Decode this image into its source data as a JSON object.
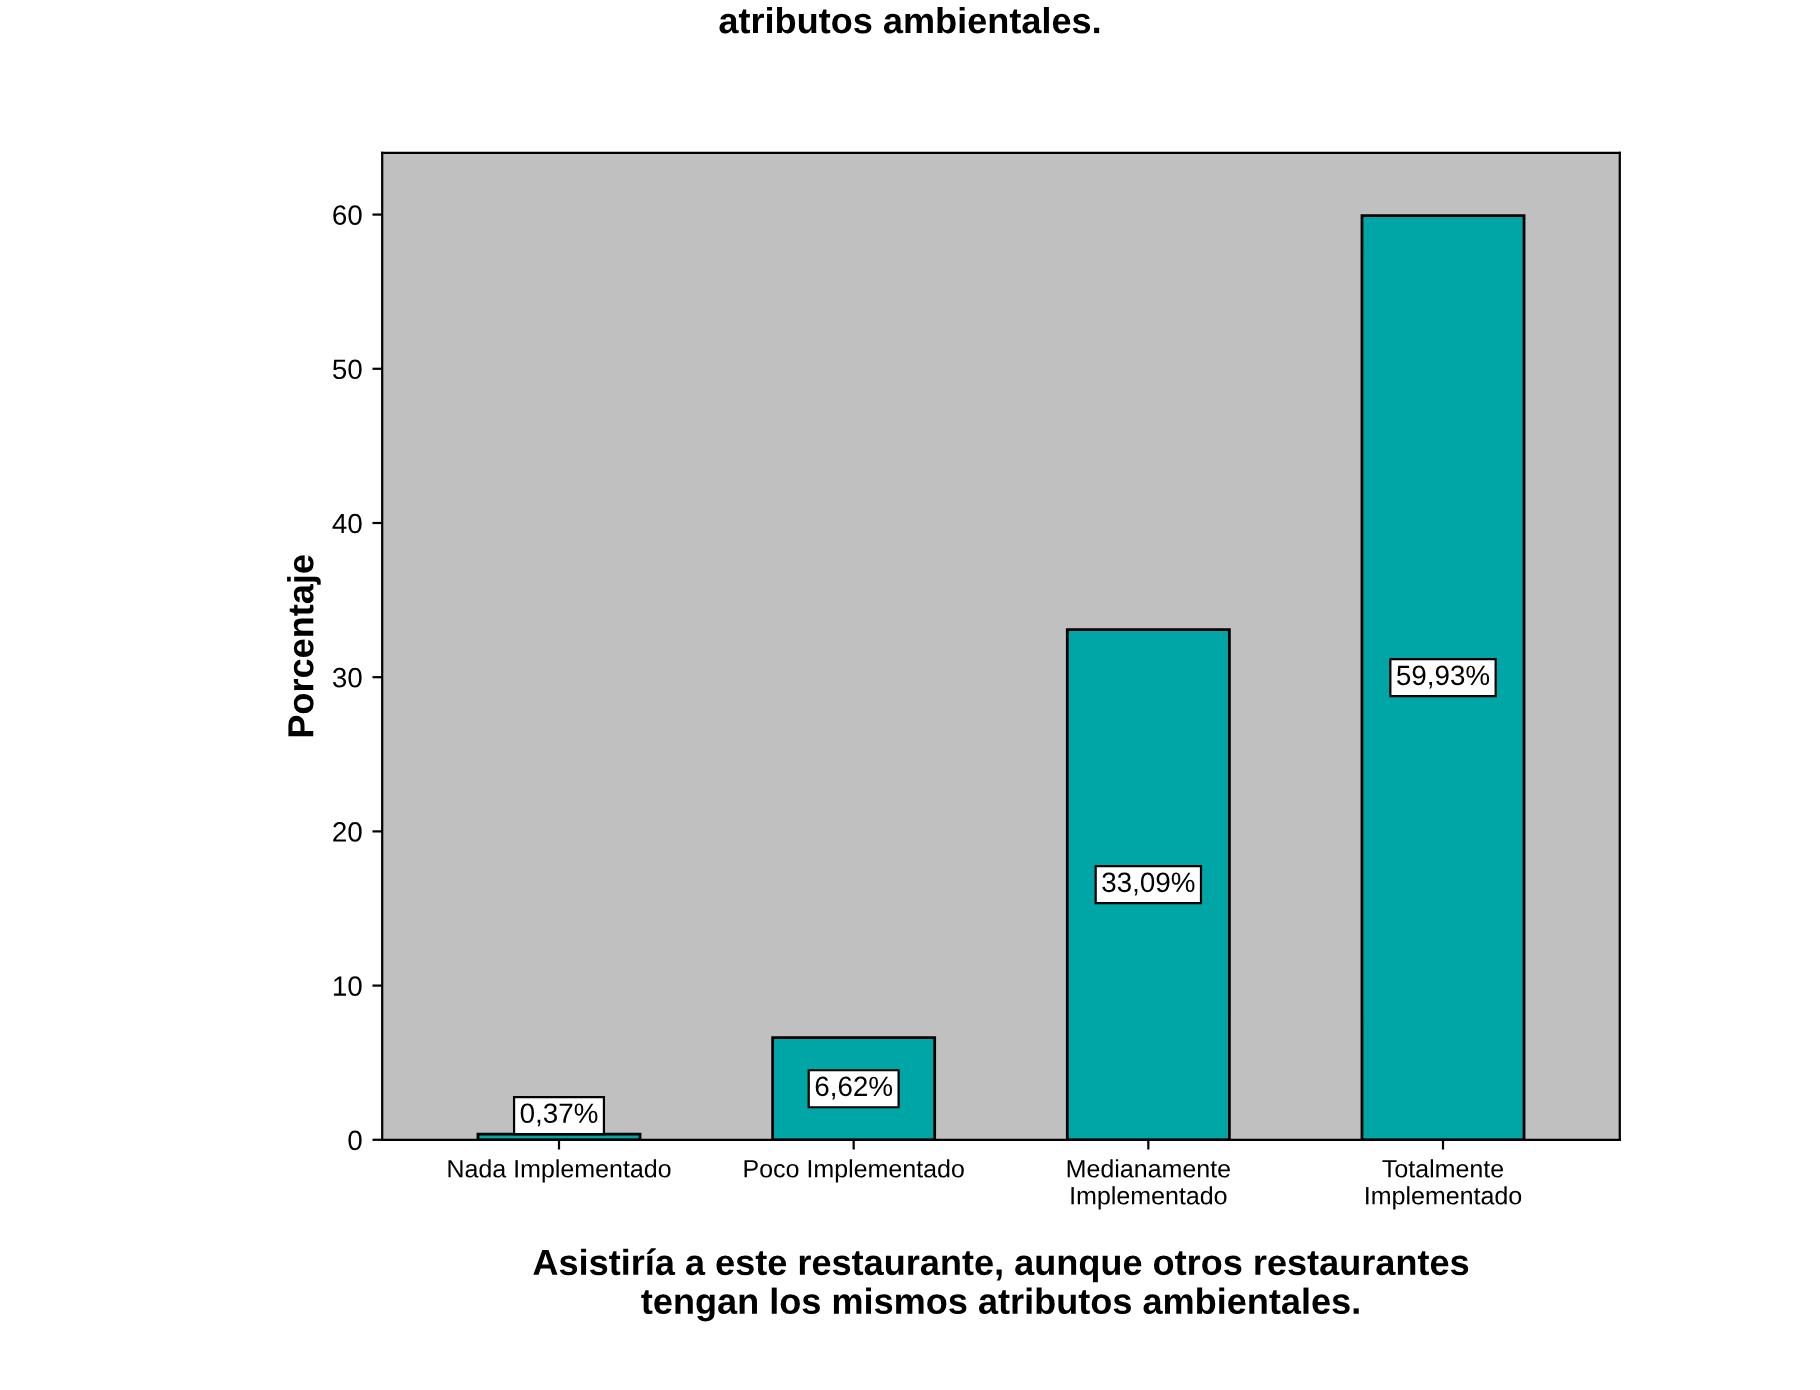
{
  "chart_data": {
    "type": "bar",
    "title": "atributos ambientales.",
    "xlabel": "Asistiría a este restaurante, aunque otros restaurantes\ntengan los mismos atributos ambientales.",
    "ylabel": "Porcentaje",
    "categories": [
      "Nada Implementado",
      "Poco Implementado",
      "Medianamente\nImplementado",
      "Totalmente\nImplementado"
    ],
    "values": [
      0.37,
      6.62,
      33.09,
      59.93
    ],
    "value_labels": [
      "0,37%",
      "6,62%",
      "33,09%",
      "59,93%"
    ],
    "color": "#00a5a5",
    "ylim": [
      0,
      64
    ],
    "yticks": [
      0,
      10,
      20,
      30,
      40,
      50,
      60
    ],
    "grid": false
  }
}
